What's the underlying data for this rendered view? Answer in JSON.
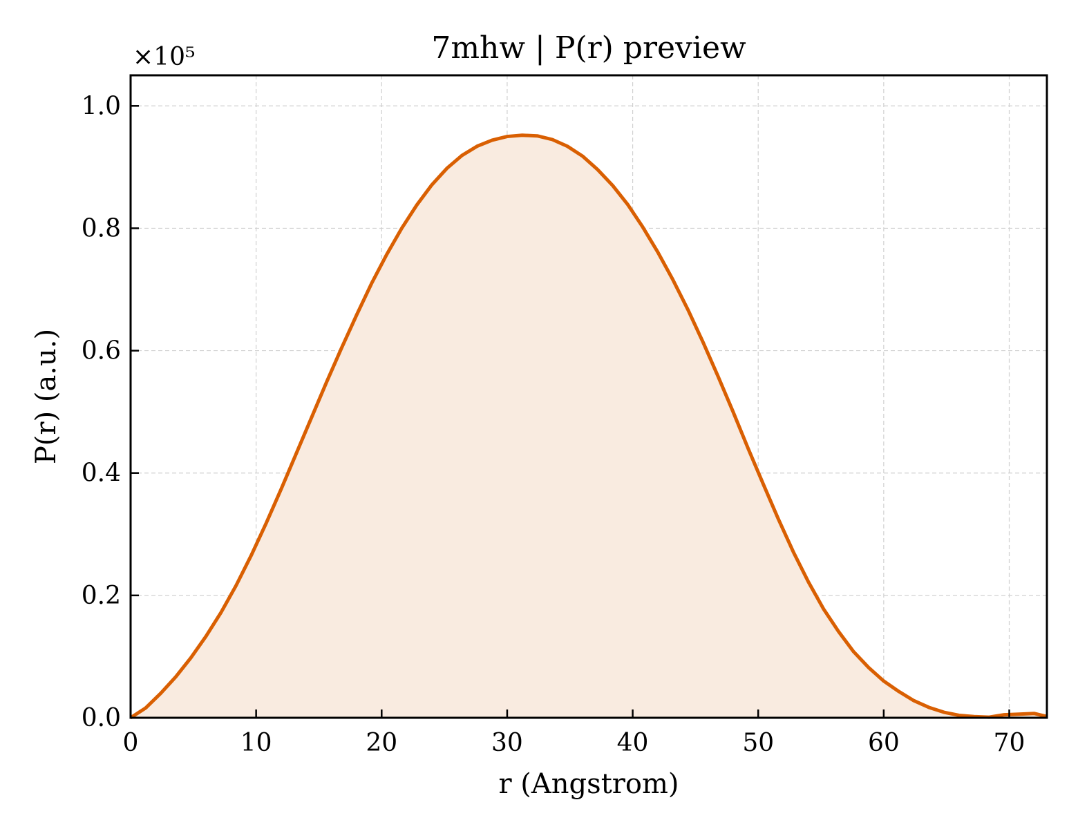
{
  "chart_data": {
    "type": "area",
    "title": "7mhw | P(r) preview",
    "xlabel": "r (Angstrom)",
    "ylabel": "P(r) (a.u.)",
    "y_offset_label": "×10⁵",
    "y_scale_factor": 100000,
    "xlim": [
      0,
      73
    ],
    "ylim": [
      0,
      1.05
    ],
    "x_ticks": [
      0,
      10,
      20,
      30,
      40,
      50,
      60,
      70
    ],
    "x_tick_labels": [
      "0",
      "10",
      "20",
      "30",
      "40",
      "50",
      "60",
      "70"
    ],
    "y_ticks": [
      0,
      0.2,
      0.4,
      0.6,
      0.8,
      1.0
    ],
    "y_tick_labels": [
      "0.0",
      "0.2",
      "0.4",
      "0.6",
      "0.8",
      "1.0"
    ],
    "grid": true,
    "line_color": "#d95f02",
    "fill_color": "#f9ebe0",
    "series": [
      {
        "x": [
          0,
          1.2,
          2.4,
          3.6,
          4.8,
          6.0,
          7.2,
          8.4,
          9.6,
          10.8,
          12.0,
          13.2,
          14.4,
          15.6,
          16.8,
          18.0,
          19.2,
          20.4,
          21.6,
          22.8,
          24.0,
          25.2,
          26.4,
          27.6,
          28.8,
          30.0,
          31.2,
          32.4,
          33.6,
          34.8,
          36.0,
          37.2,
          38.4,
          39.6,
          40.8,
          42.0,
          43.2,
          44.4,
          45.6,
          46.8,
          48.0,
          49.2,
          50.4,
          51.6,
          52.8,
          54.0,
          55.2,
          56.4,
          57.6,
          58.8,
          60.0,
          61.2,
          62.4,
          63.6,
          64.8,
          66.0,
          67.2,
          68.4,
          69.6,
          70.8,
          72.0,
          73.0
        ],
        "y": [
          0.0,
          0.016,
          0.04,
          0.067,
          0.098,
          0.133,
          0.172,
          0.216,
          0.265,
          0.318,
          0.374,
          0.432,
          0.49,
          0.548,
          0.604,
          0.658,
          0.71,
          0.757,
          0.8,
          0.838,
          0.871,
          0.898,
          0.919,
          0.934,
          0.944,
          0.95,
          0.952,
          0.951,
          0.945,
          0.934,
          0.918,
          0.896,
          0.87,
          0.839,
          0.802,
          0.761,
          0.716,
          0.667,
          0.614,
          0.558,
          0.5,
          0.44,
          0.382,
          0.325,
          0.271,
          0.222,
          0.178,
          0.141,
          0.108,
          0.082,
          0.06,
          0.043,
          0.028,
          0.017,
          0.009,
          0.004,
          0.002,
          0.001,
          0.005,
          0.006,
          0.007,
          0.002
        ]
      }
    ]
  }
}
